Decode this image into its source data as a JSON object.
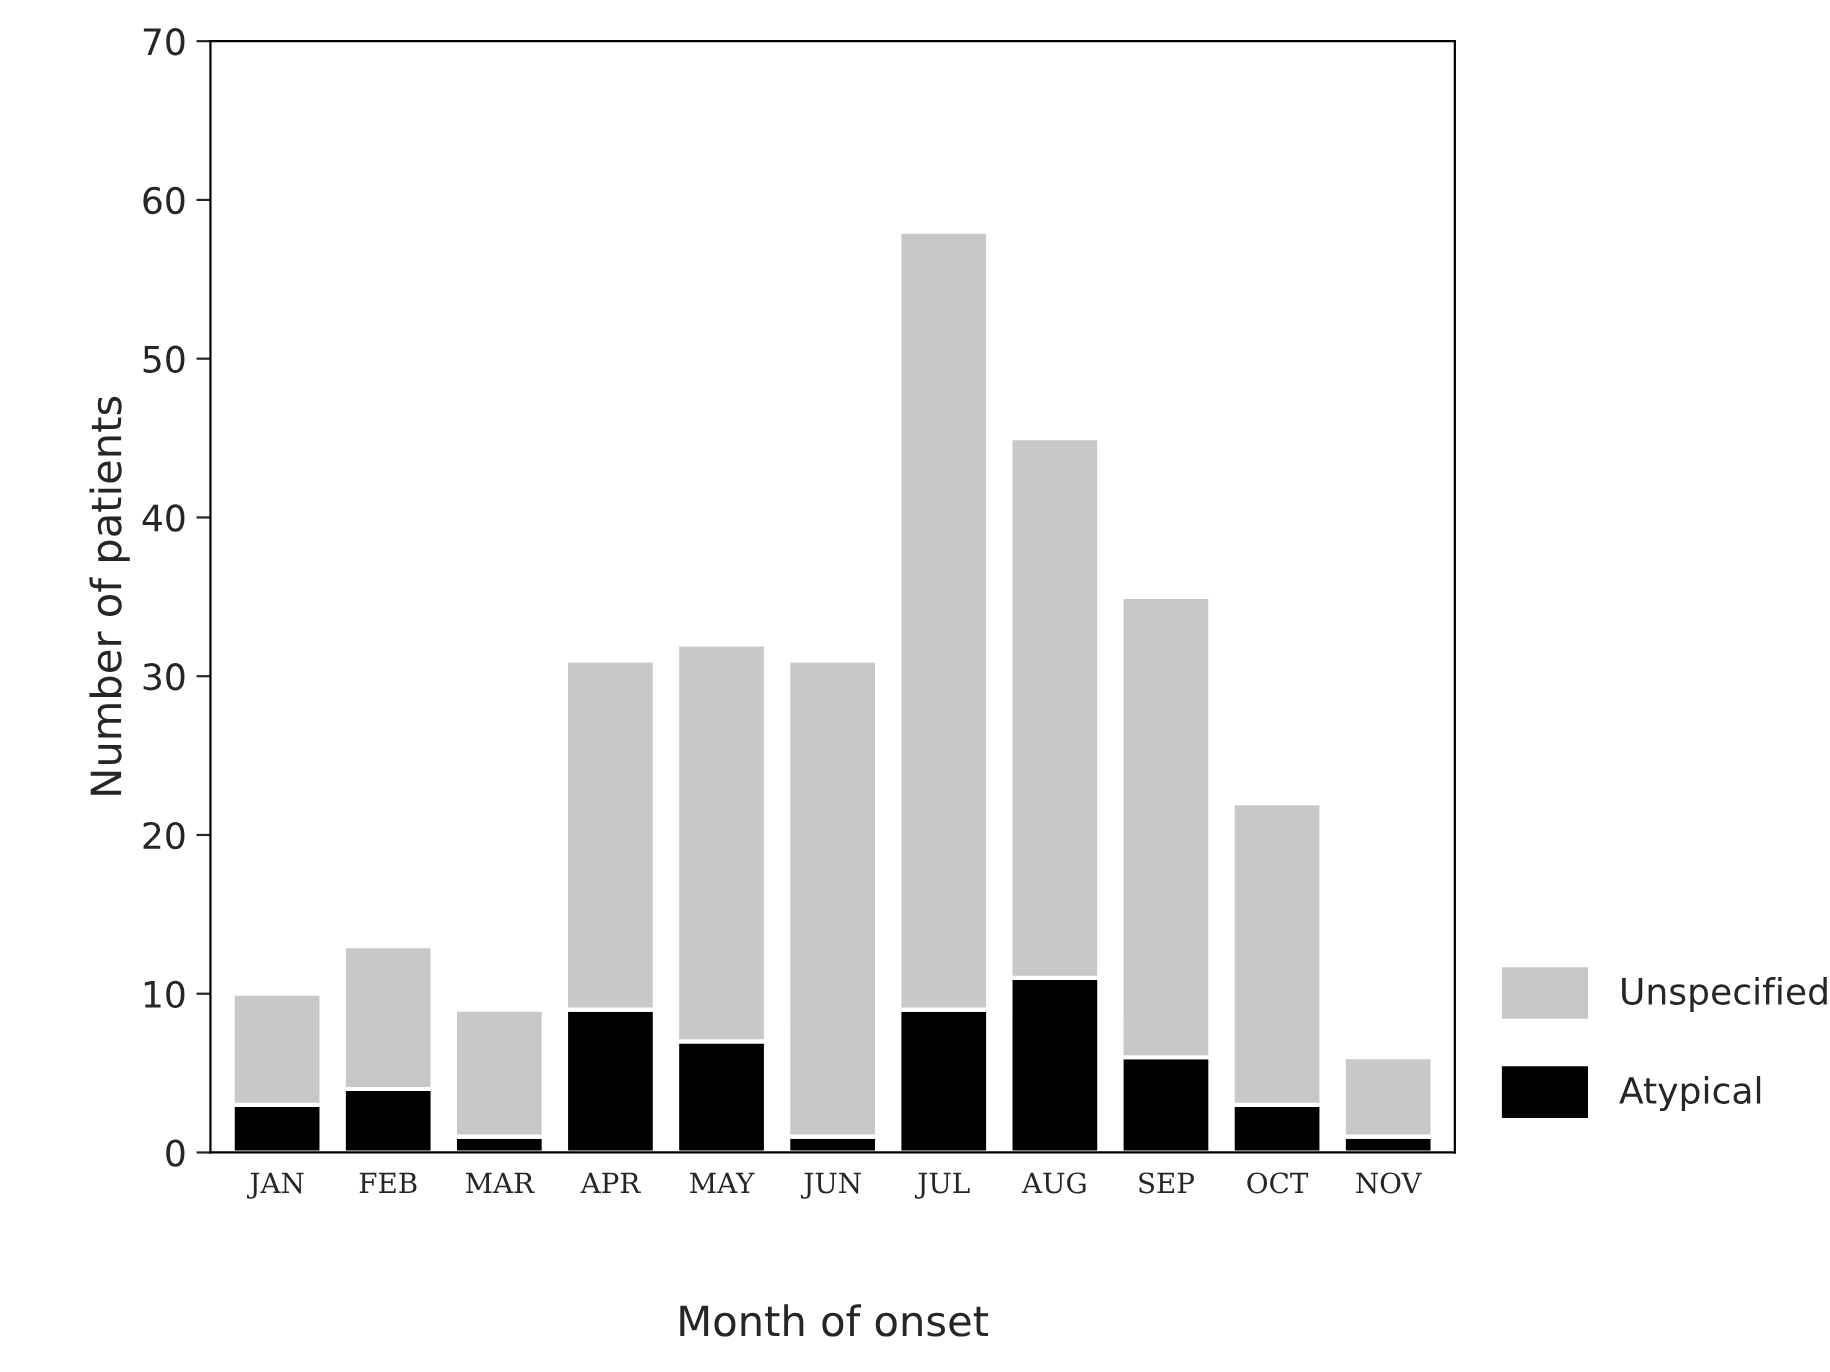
{
  "chart_data": {
    "type": "bar",
    "stacked": true,
    "xlabel": "Month of onset",
    "ylabel": "Number of patients",
    "categories": [
      "JAN",
      "FEB",
      "MAR",
      "APR",
      "MAY",
      "JUN",
      "JUL",
      "AUG",
      "SEP",
      "OCT",
      "NOV"
    ],
    "series": [
      {
        "name": "Atypical",
        "color": "#000000",
        "values": [
          3,
          4,
          1,
          9,
          7,
          1,
          9,
          11,
          6,
          3,
          1
        ]
      },
      {
        "name": "Unspecified",
        "color": "#c8c8c8",
        "values": [
          7,
          9,
          8,
          22,
          25,
          30,
          49,
          34,
          29,
          19,
          5
        ]
      }
    ],
    "ylim": [
      0,
      70
    ],
    "yticks": [
      0,
      10,
      20,
      30,
      40,
      50,
      60,
      70
    ],
    "grid": false,
    "legend": "bottom right"
  }
}
